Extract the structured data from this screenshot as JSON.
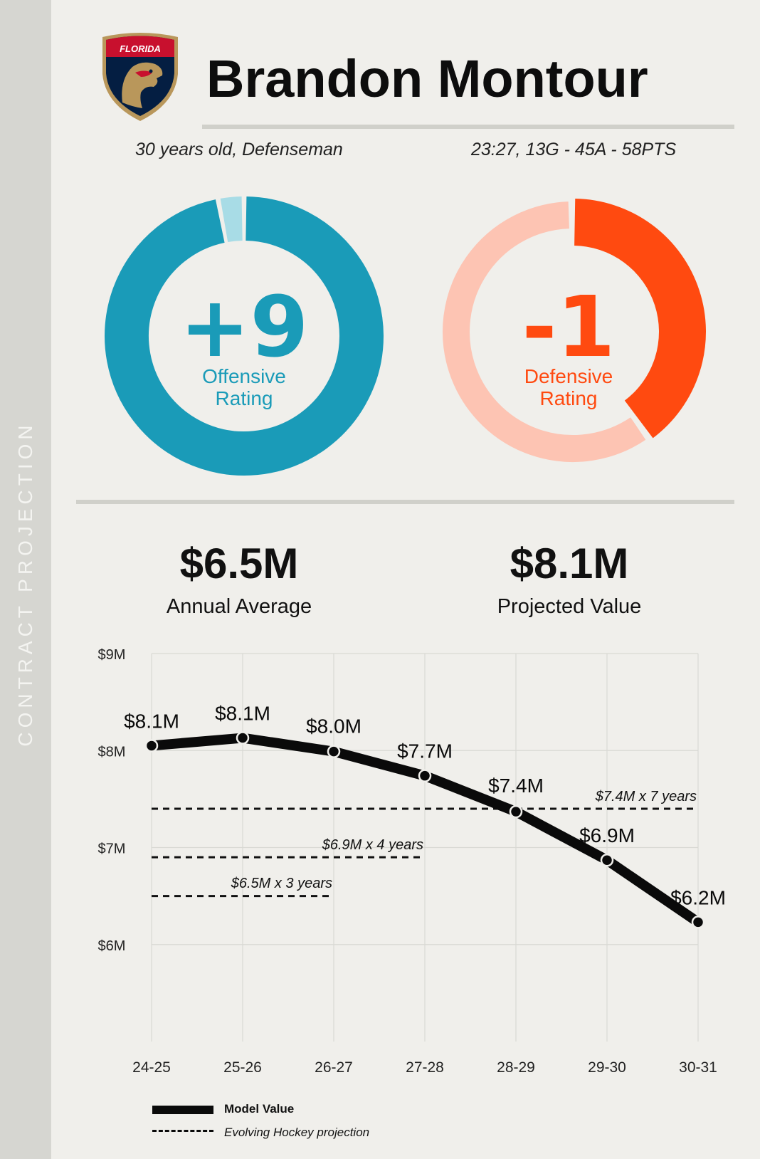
{
  "side_label": "CONTRACT PROJECTION",
  "player": {
    "name": "Brandon Montour",
    "age_position": "30 years old, Defenseman",
    "stat_line": "23:27, 13G - 45A - 58PTS",
    "team_logo_text": "FLORIDA"
  },
  "offense": {
    "value": "+9",
    "label_line1": "Offensive",
    "label_line2": "Rating",
    "fill_fraction": 0.97,
    "color": "#1a9bb8",
    "track_color": "#a8dce6"
  },
  "defense": {
    "value": "-1",
    "label_line1": "Defensive",
    "label_line2": "Rating",
    "fill_fraction": 0.4,
    "color": "#ff4a10",
    "track_color": "#fdc4b3"
  },
  "contract": {
    "annual_average": "$6.5M",
    "annual_average_label": "Annual Average",
    "projected_value": "$8.1M",
    "projected_value_label": "Projected Value"
  },
  "chart_data": {
    "type": "line",
    "categories": [
      "24-25",
      "25-26",
      "26-27",
      "27-28",
      "28-29",
      "29-30",
      "30-31"
    ],
    "series": [
      {
        "name": "Model Value",
        "values": [
          8.05,
          8.13,
          7.99,
          7.74,
          7.37,
          6.87,
          6.23
        ],
        "labels": [
          "$8.1M",
          "$8.1M",
          "$8.0M",
          "$7.7M",
          "$7.4M",
          "$6.9M",
          "$6.2M"
        ]
      }
    ],
    "reference_lines": [
      {
        "label": "$7.4M x 7 years",
        "value": 7.4,
        "start": 0,
        "end": 6
      },
      {
        "label": "$6.9M x 4 years",
        "value": 6.9,
        "start": 0,
        "end": 3
      },
      {
        "label": "$6.5M x 3 years",
        "value": 6.5,
        "start": 0,
        "end": 2
      }
    ],
    "ylim": [
      5,
      9
    ],
    "y_ticks": [
      {
        "value": 9,
        "label": "$9M"
      },
      {
        "value": 8,
        "label": "$8M"
      },
      {
        "value": 7,
        "label": "$7M"
      },
      {
        "value": 6,
        "label": "$6M"
      }
    ],
    "grid": true,
    "legend": {
      "position": "bottom-left",
      "solid_label": "Model Value",
      "dashed_label": "Evolving Hockey projection"
    }
  }
}
